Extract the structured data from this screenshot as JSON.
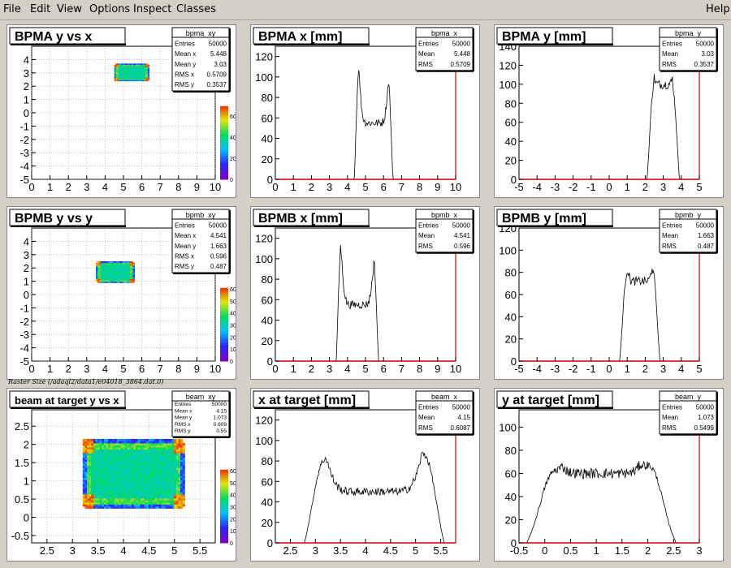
{
  "menu": {
    "items": [
      {
        "label": "File"
      },
      {
        "label": "Edit"
      },
      {
        "label": "View"
      },
      {
        "label": "Options"
      },
      {
        "label": "Inspect"
      },
      {
        "label": "Classes"
      }
    ],
    "help": "Help"
  },
  "raster_caption": "Raster Size (/adaql2/data1/e04018_3864.dat.0)",
  "chart_data": [
    {
      "type": "heatmap",
      "title": "BPMA y vs x",
      "stats_name": "bpma_xy",
      "stats": [
        [
          "Entries",
          "50000"
        ],
        [
          "Mean x",
          "5.448"
        ],
        [
          "Mean y",
          "3.03"
        ],
        [
          "RMS x",
          "0.5709"
        ],
        [
          "RMS y",
          "0.3537"
        ]
      ],
      "xlim": [
        0,
        10
      ],
      "ylim": [
        -5,
        5
      ],
      "xticks": [
        "0",
        "1",
        "2",
        "3",
        "4",
        "5",
        "6",
        "7",
        "8",
        "9",
        "10"
      ],
      "yticks": [
        "-5",
        "-4",
        "-3",
        "-2",
        "-1",
        "0",
        "1",
        "2",
        "3",
        "4"
      ],
      "blob": {
        "x0": 4.5,
        "x1": 6.4,
        "y0": 2.4,
        "y1": 3.7
      },
      "zticks": [
        "0",
        "20",
        "40",
        "60"
      ],
      "zmax": 80
    },
    {
      "type": "bar",
      "title": "BPMA x [mm]",
      "stats_name": "bpma_x",
      "stats": [
        [
          "Entries",
          "50000"
        ],
        [
          "Mean",
          "5.448"
        ],
        [
          "RMS",
          "0.5709"
        ]
      ],
      "xlim": [
        0,
        10
      ],
      "ylim": [
        0,
        130
      ],
      "xticks": [
        "0",
        "1",
        "2",
        "3",
        "4",
        "5",
        "6",
        "7",
        "8",
        "9",
        "10"
      ],
      "yticks": [
        "0",
        "20",
        "40",
        "60",
        "80",
        "100",
        "120"
      ],
      "shape": {
        "a": 4.5,
        "b": 6.4,
        "edge": 0.12,
        "peakL": 128,
        "peakR": 112,
        "mid": 55,
        "noise": 8
      }
    },
    {
      "type": "bar",
      "title": "BPMA y [mm]",
      "stats_name": "bpma_y",
      "stats": [
        [
          "Entries",
          "50000"
        ],
        [
          "Mean",
          "3.03"
        ],
        [
          "RMS",
          "0.3537"
        ]
      ],
      "xlim": [
        -5,
        5
      ],
      "ylim": [
        0,
        140
      ],
      "xticks": [
        "-5",
        "-4",
        "-3",
        "-2",
        "-1",
        "0",
        "1",
        "2",
        "3",
        "4",
        "5"
      ],
      "yticks": [
        "0",
        "20",
        "40",
        "60",
        "80",
        "100",
        "120",
        "140"
      ],
      "shape": {
        "a": 2.3,
        "b": 3.7,
        "edge": 0.2,
        "peakL": 130,
        "peakR": 125,
        "mid": 100,
        "noise": 10
      }
    },
    {
      "type": "heatmap",
      "title": "BPMB y vs y",
      "stats_name": "bpmb_xy",
      "stats": [
        [
          "Entries",
          "50000"
        ],
        [
          "Mean x",
          "4.541"
        ],
        [
          "Mean y",
          "1.663"
        ],
        [
          "RMS x",
          "0.596"
        ],
        [
          "RMS y",
          "0.487"
        ]
      ],
      "xlim": [
        0,
        10
      ],
      "ylim": [
        -5,
        5
      ],
      "xticks": [
        "0",
        "1",
        "2",
        "3",
        "4",
        "5",
        "6",
        "7",
        "8",
        "9",
        "10"
      ],
      "yticks": [
        "-5",
        "-4",
        "-3",
        "-2",
        "-1",
        "0",
        "1",
        "2",
        "3",
        "4"
      ],
      "blob": {
        "x0": 3.5,
        "x1": 5.6,
        "y0": 0.9,
        "y1": 2.5
      },
      "zticks": [
        "0",
        "10",
        "20",
        "30",
        "40",
        "50",
        "60"
      ],
      "zmax": 70
    },
    {
      "type": "bar",
      "title": "BPMB x [mm]",
      "stats_name": "bpmb_x",
      "stats": [
        [
          "Entries",
          "50000"
        ],
        [
          "Mean",
          "4.541"
        ],
        [
          "RMS",
          "0.596"
        ]
      ],
      "xlim": [
        0,
        10
      ],
      "ylim": [
        0,
        130
      ],
      "xticks": [
        "0",
        "1",
        "2",
        "3",
        "4",
        "5",
        "6",
        "7",
        "8",
        "9",
        "10"
      ],
      "yticks": [
        "0",
        "20",
        "40",
        "60",
        "80",
        "100",
        "120"
      ],
      "shape": {
        "a": 3.5,
        "b": 5.6,
        "edge": 0.12,
        "peakL": 128,
        "peakR": 110,
        "mid": 55,
        "noise": 8
      }
    },
    {
      "type": "bar",
      "title": "BPMB y [mm]",
      "stats_name": "bpmb_y",
      "stats": [
        [
          "Entries",
          "50000"
        ],
        [
          "Mean",
          "1.663"
        ],
        [
          "RMS",
          "0.487"
        ]
      ],
      "xlim": [
        -5,
        5
      ],
      "ylim": [
        0,
        120
      ],
      "xticks": [
        "-5",
        "-4",
        "-3",
        "-2",
        "-1",
        "0",
        "1",
        "2",
        "3",
        "4",
        "5"
      ],
      "yticks": [
        "0",
        "20",
        "40",
        "60",
        "80",
        "100",
        "120"
      ],
      "shape": {
        "a": 0.8,
        "b": 2.6,
        "edge": 0.22,
        "peakL": 105,
        "peakR": 110,
        "mid": 72,
        "noise": 8
      }
    },
    {
      "type": "heatmap",
      "title": "beam at target y vs x",
      "stats_name": "beam_xy",
      "stats": [
        [
          "Entries",
          "50000"
        ],
        [
          "Mean x",
          "4.15"
        ],
        [
          "Mean y",
          "1.073"
        ],
        [
          "RMS x",
          "0.609"
        ],
        [
          "RMS y",
          "0.55"
        ]
      ],
      "xlim": [
        2.2,
        5.8
      ],
      "ylim": [
        -0.7,
        2.95
      ],
      "xticks": [
        "2.5",
        "3",
        "3.5",
        "4",
        "4.5",
        "5",
        "5.5"
      ],
      "xtickvals": [
        2.5,
        3,
        3.5,
        4,
        4.5,
        5,
        5.5
      ],
      "yticks": [
        "-0.5",
        "0",
        "0.5",
        "1",
        "1.5",
        "2",
        "2.5"
      ],
      "ytickvals": [
        -0.5,
        0,
        0.5,
        1,
        1.5,
        2,
        2.5
      ],
      "blob": {
        "x0": 3.2,
        "x1": 5.2,
        "y0": 0.25,
        "y1": 2.15
      },
      "zticks": [
        "0",
        "10",
        "20",
        "30",
        "40",
        "50",
        "60"
      ],
      "zmax": 70,
      "big": true
    },
    {
      "type": "bar",
      "title": "x at target [mm]",
      "stats_name": "beam_x",
      "stats": [
        [
          "Entries",
          "50000"
        ],
        [
          "Mean",
          "4.15"
        ],
        [
          "RMS",
          "0.6087"
        ]
      ],
      "xlim": [
        2.2,
        5.8
      ],
      "ylim": [
        0,
        130
      ],
      "xticks": [
        "2.5",
        "3",
        "3.5",
        "4",
        "4.5",
        "5",
        "5.5"
      ],
      "xtickvals": [
        2.5,
        3,
        3.5,
        4,
        4.5,
        5,
        5.5
      ],
      "yticks": [
        "0",
        "20",
        "40",
        "60",
        "80",
        "100",
        "120"
      ],
      "shape": {
        "a": 3.0,
        "b": 5.35,
        "edge": 0.22,
        "peakL": 110,
        "peakR": 118,
        "mid": 50,
        "noise": 8
      }
    },
    {
      "type": "bar",
      "title": "y at target [mm]",
      "stats_name": "beam_y",
      "stats": [
        [
          "Entries",
          "50000"
        ],
        [
          "Mean",
          "1.073"
        ],
        [
          "RMS",
          "0.5499"
        ]
      ],
      "xlim": [
        -0.5,
        3
      ],
      "ylim": [
        0,
        115
      ],
      "xticks": [
        "-0.5",
        "0",
        "0.5",
        "1",
        "1.5",
        "2",
        "2.5",
        "3"
      ],
      "xtickvals": [
        -0.5,
        0,
        0.5,
        1,
        1.5,
        2,
        2.5,
        3
      ],
      "yticks": [
        "0",
        "20",
        "40",
        "60",
        "80",
        "100"
      ],
      "shape": {
        "a": 0,
        "b": 2.2,
        "edge": 0.35,
        "peakL": 95,
        "peakR": 105,
        "mid": 60,
        "noise": 9
      }
    }
  ]
}
